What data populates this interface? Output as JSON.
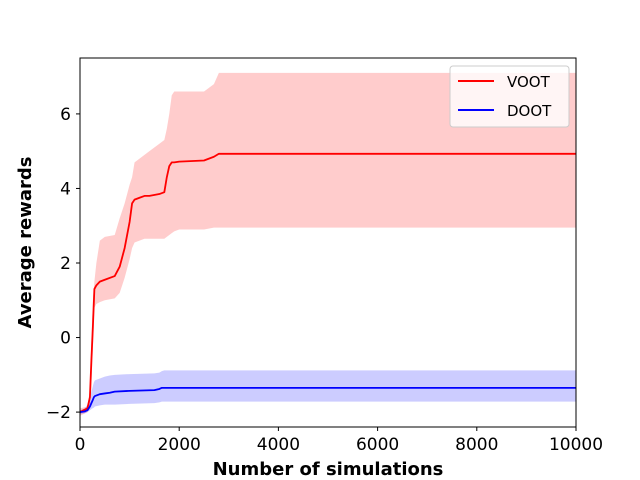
{
  "chart_data": {
    "type": "line",
    "title": "",
    "xlabel": "Number of simulations",
    "ylabel": "Average rewards",
    "xlim": [
      0,
      10000
    ],
    "ylim": [
      -2.4,
      7.5
    ],
    "xticks": [
      0,
      2000,
      4000,
      6000,
      8000,
      10000
    ],
    "yticks": [
      -2,
      0,
      2,
      4,
      6
    ],
    "xtick_labels": [
      "0",
      "2000",
      "4000",
      "6000",
      "8000",
      "10000"
    ],
    "ytick_labels": [
      "−2",
      "0",
      "2",
      "4",
      "6"
    ],
    "grid": false,
    "legend": "top-right",
    "series": [
      {
        "name": "VOOT",
        "color": "#ff0000",
        "band_color": "#ff0000",
        "band_alpha": 0.2,
        "x": [
          0,
          150,
          200,
          230,
          260,
          290,
          330,
          400,
          500,
          700,
          800,
          900,
          1000,
          1050,
          1100,
          1200,
          1300,
          1400,
          1600,
          1700,
          1750,
          1800,
          1850,
          1900,
          2000,
          2500,
          2700,
          2800,
          10000
        ],
        "mean": [
          -2.0,
          -1.9,
          -1.6,
          -0.6,
          0.3,
          1.3,
          1.4,
          1.5,
          1.55,
          1.65,
          1.9,
          2.4,
          3.1,
          3.6,
          3.7,
          3.75,
          3.8,
          3.8,
          3.85,
          3.9,
          4.3,
          4.6,
          4.7,
          4.7,
          4.72,
          4.75,
          4.85,
          4.93,
          4.93
        ],
        "upper": [
          -1.9,
          -1.85,
          -1.4,
          0.0,
          1.0,
          1.5,
          2.0,
          2.6,
          2.7,
          2.75,
          3.2,
          3.6,
          4.1,
          4.3,
          4.7,
          4.8,
          4.9,
          5.0,
          5.2,
          5.3,
          5.6,
          6.0,
          6.5,
          6.6,
          6.6,
          6.6,
          6.8,
          7.1,
          7.1
        ],
        "lower": [
          -2.1,
          -2.0,
          -1.9,
          -1.2,
          -0.3,
          0.8,
          0.9,
          0.95,
          1.0,
          1.05,
          1.2,
          1.6,
          2.1,
          2.4,
          2.55,
          2.6,
          2.65,
          2.65,
          2.65,
          2.65,
          2.7,
          2.75,
          2.8,
          2.85,
          2.9,
          2.9,
          2.95,
          2.95,
          2.95
        ]
      },
      {
        "name": "DOOT",
        "color": "#0000ff",
        "band_color": "#0000ff",
        "band_alpha": 0.2,
        "x": [
          0,
          100,
          150,
          200,
          250,
          280,
          300,
          400,
          500,
          600,
          700,
          1000,
          1500,
          1600,
          1650,
          1700,
          10000
        ],
        "mean": [
          -2.0,
          -1.98,
          -1.95,
          -1.85,
          -1.7,
          -1.6,
          -1.57,
          -1.52,
          -1.5,
          -1.48,
          -1.45,
          -1.43,
          -1.41,
          -1.38,
          -1.35,
          -1.35,
          -1.35
        ],
        "upper": [
          -1.95,
          -1.9,
          -1.8,
          -1.6,
          -1.35,
          -1.2,
          -1.15,
          -1.1,
          -1.05,
          -1.02,
          -1.0,
          -0.98,
          -0.96,
          -0.94,
          -0.9,
          -0.88,
          -0.88
        ],
        "lower": [
          -2.05,
          -2.03,
          -2.0,
          -1.95,
          -1.9,
          -1.88,
          -1.85,
          -1.82,
          -1.8,
          -1.8,
          -1.8,
          -1.78,
          -1.76,
          -1.74,
          -1.72,
          -1.72,
          -1.72
        ]
      }
    ]
  }
}
